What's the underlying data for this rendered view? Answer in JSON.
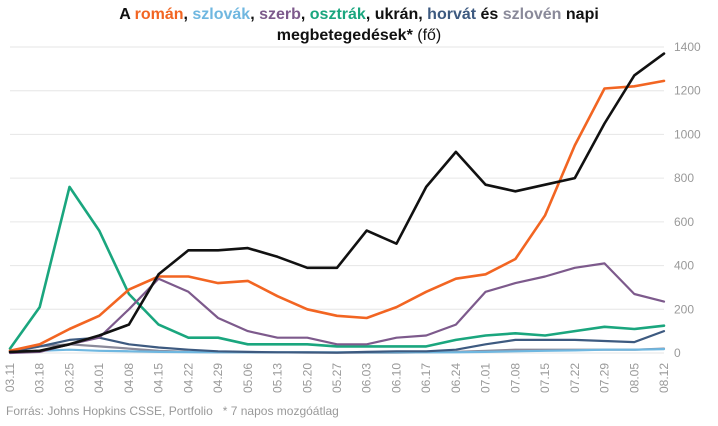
{
  "title": {
    "parts": [
      {
        "text": "A ",
        "color": "#111111"
      },
      {
        "text": "román",
        "color": "#f26522"
      },
      {
        "text": ", ",
        "color": "#111111"
      },
      {
        "text": "szlovák",
        "color": "#6fb7e0"
      },
      {
        "text": ", ",
        "color": "#111111"
      },
      {
        "text": "szerb",
        "color": "#7d5a8c"
      },
      {
        "text": ", ",
        "color": "#111111"
      },
      {
        "text": "osztrák",
        "color": "#1aa67e"
      },
      {
        "text": ", ",
        "color": "#111111"
      },
      {
        "text": "ukrán",
        "color": "#111111"
      },
      {
        "text": ", ",
        "color": "#111111"
      },
      {
        "text": "horvát",
        "color": "#3d5a80"
      },
      {
        "text": " és ",
        "color": "#111111"
      },
      {
        "text": "szlovén",
        "color": "#8a8a9a"
      },
      {
        "text": " napi",
        "color": "#111111"
      }
    ],
    "line2": "megbetegedések*",
    "unit": " (fő)"
  },
  "source": "Forrás: Johns Hopkins CSSE, Portfolio   * 7 napos mozgóátlag",
  "chart_data": {
    "type": "line",
    "x": [
      "03.11",
      "03.18",
      "03.25",
      "04.01",
      "04.08",
      "04.15",
      "04.22",
      "04.29",
      "05.06",
      "05.13",
      "05.20",
      "05.27",
      "06.03",
      "06.10",
      "06.17",
      "06.24",
      "07.01",
      "07.08",
      "07.15",
      "07.22",
      "07.29",
      "08.05",
      "08.12"
    ],
    "ylim": [
      0,
      1400
    ],
    "yticks": [
      0,
      200,
      400,
      600,
      800,
      1000,
      1200,
      1400
    ],
    "grid": true,
    "y_axis_side": "right",
    "series": [
      {
        "name": "román",
        "color": "#f26522",
        "values": [
          10,
          40,
          110,
          170,
          290,
          350,
          350,
          320,
          330,
          260,
          200,
          170,
          160,
          210,
          280,
          340,
          360,
          430,
          630,
          950,
          1210,
          1220,
          1245
        ]
      },
      {
        "name": "szlovák",
        "color": "#6fb7e0",
        "values": [
          5,
          10,
          15,
          10,
          8,
          5,
          4,
          3,
          3,
          3,
          3,
          3,
          3,
          3,
          3,
          3,
          5,
          8,
          10,
          12,
          15,
          15,
          18
        ]
      },
      {
        "name": "szerb",
        "color": "#7d5a8c",
        "values": [
          0,
          5,
          40,
          70,
          200,
          340,
          280,
          160,
          100,
          70,
          70,
          40,
          40,
          70,
          80,
          130,
          280,
          320,
          350,
          390,
          410,
          270,
          235
        ]
      },
      {
        "name": "osztrák",
        "color": "#1aa67e",
        "values": [
          20,
          210,
          760,
          560,
          270,
          130,
          70,
          70,
          40,
          40,
          40,
          30,
          30,
          30,
          30,
          60,
          80,
          90,
          80,
          100,
          120,
          110,
          125
        ]
      },
      {
        "name": "ukrán",
        "color": "#111111",
        "values": [
          5,
          10,
          40,
          80,
          130,
          360,
          470,
          470,
          480,
          440,
          390,
          390,
          560,
          500,
          760,
          920,
          770,
          740,
          770,
          800,
          1050,
          1270,
          1370
        ]
      },
      {
        "name": "horvát",
        "color": "#3d5a80",
        "values": [
          5,
          30,
          60,
          70,
          40,
          25,
          15,
          8,
          5,
          3,
          3,
          2,
          5,
          8,
          8,
          15,
          40,
          60,
          60,
          60,
          55,
          50,
          100
        ]
      },
      {
        "name": "szlovén",
        "color": "#8a8a9a",
        "values": [
          10,
          30,
          40,
          30,
          20,
          10,
          5,
          3,
          3,
          3,
          2,
          2,
          2,
          2,
          3,
          5,
          10,
          15,
          15,
          15,
          15,
          15,
          20
        ]
      }
    ]
  }
}
